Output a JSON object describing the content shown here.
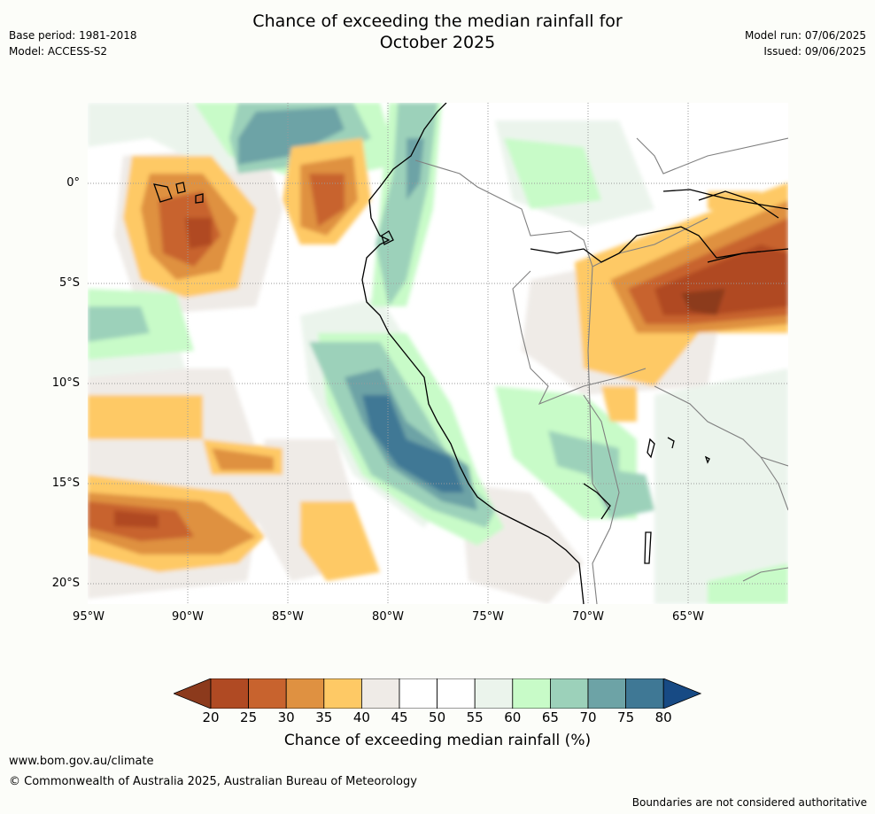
{
  "title_line1": "Chance of exceeding the median rainfall for",
  "title_line2": "October 2025",
  "meta_left": {
    "base_period": "Base period: 1981-2018",
    "model": "Model: ACCESS-S2"
  },
  "meta_right": {
    "model_run": "Model run: 07/06/2025",
    "issued": "Issued: 09/06/2025"
  },
  "map": {
    "lat_labels": [
      "0°",
      "5°S",
      "10°S",
      "15°S",
      "20°S"
    ],
    "lon_labels": [
      "95°W",
      "90°W",
      "85°W",
      "80°W",
      "75°W",
      "70°W",
      "65°W"
    ]
  },
  "colorbar": {
    "ticks": [
      "20",
      "25",
      "30",
      "35",
      "40",
      "45",
      "50",
      "55",
      "60",
      "65",
      "70",
      "75",
      "80"
    ],
    "colors": [
      "#8c3a1c",
      "#b04a23",
      "#c8632e",
      "#df9141",
      "#fec965",
      "#efebe7",
      "#ffffff",
      "#ffffff",
      "#ebf4ec",
      "#c8fbc8",
      "#9cd1ba",
      "#6da3a6",
      "#3f7895",
      "#174a84"
    ],
    "title": "Chance of exceeding median rainfall (%)"
  },
  "footer": {
    "url": "www.bom.gov.au/climate",
    "copyright": "© Commonwealth of Australia 2025, Australian Bureau of Meteorology",
    "disclaimer": "Boundaries are not considered authoritative"
  }
}
